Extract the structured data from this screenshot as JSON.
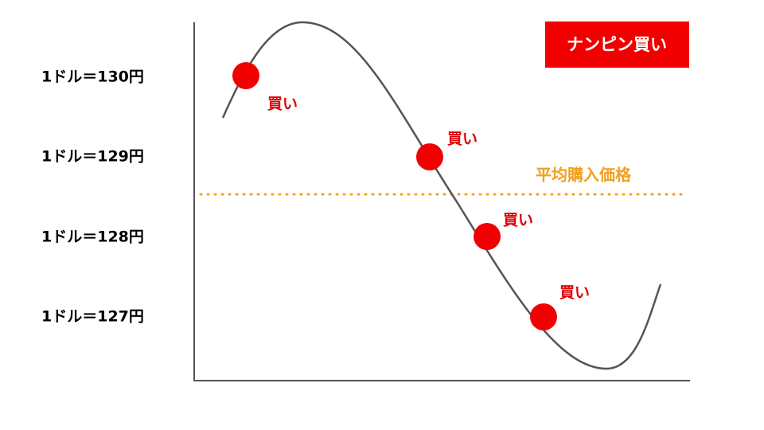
{
  "y_labels": [
    "1ドル＝130円",
    "1ドル＝129円",
    "1ドル＝128円",
    "1ドル＝127円"
  ],
  "badge": "ナンピン買い",
  "buy_labels": [
    "買い",
    "買い",
    "買い",
    "買い"
  ],
  "average_label": "平均購入価格"
}
